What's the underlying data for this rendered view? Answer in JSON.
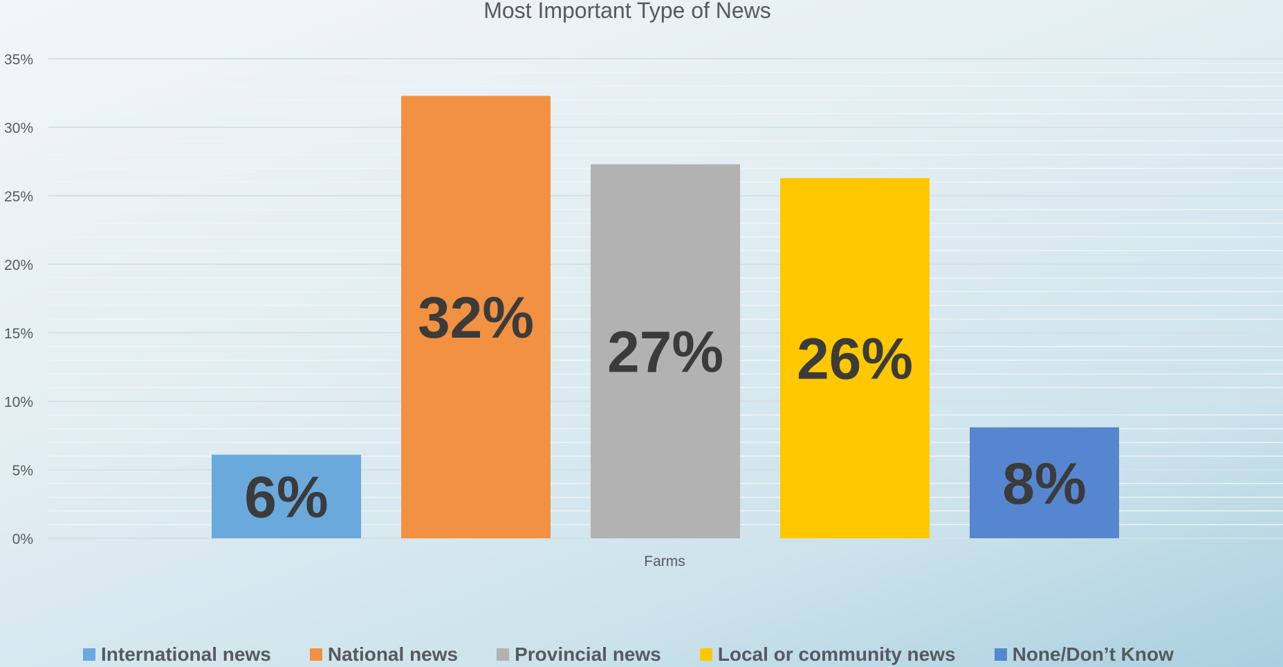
{
  "chart_data": {
    "type": "bar",
    "title": "Most Important Type of News",
    "categories": [
      "Farms"
    ],
    "series": [
      {
        "name": "International news",
        "values": [
          6
        ],
        "color": "#6aa9dc"
      },
      {
        "name": "National news",
        "values": [
          32
        ],
        "color": "#f29141"
      },
      {
        "name": "Provincial news",
        "values": [
          27
        ],
        "color": "#b2b2b2"
      },
      {
        "name": "Local or community news",
        "values": [
          26
        ],
        "color": "#ffc800"
      },
      {
        "name": "None/Don’t Know",
        "values": [
          8
        ],
        "color": "#5686d0"
      }
    ],
    "plotted_values": [
      6.1,
      32.3,
      27.3,
      26.3,
      8.1
    ],
    "data_labels": [
      "6%",
      "32%",
      "27%",
      "26%",
      "8%"
    ],
    "yticks": [
      "0%",
      "5%",
      "10%",
      "15%",
      "20%",
      "25%",
      "30%",
      "35%"
    ],
    "ylim": [
      0,
      35
    ],
    "xlabel": "",
    "ylabel": "",
    "grid": true,
    "legend_position": "bottom"
  }
}
